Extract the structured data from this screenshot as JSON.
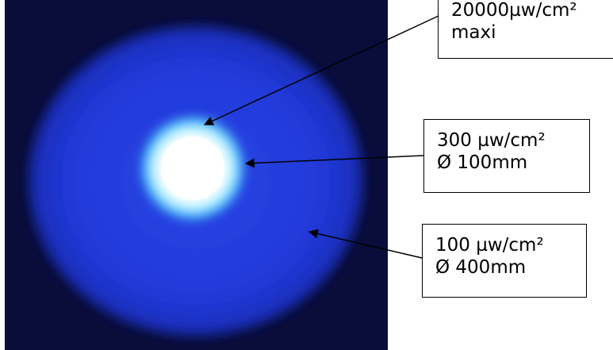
{
  "colors": {
    "background_dark": "#0a0c3a",
    "disc_blue": "#1f37d8",
    "halo_cyan": "#7fe3ff",
    "core_white": "#ffffff",
    "arrow": "#000000"
  },
  "callouts": {
    "max": {
      "line1": "20000µw/cm²",
      "line2": "maxi"
    },
    "inner": {
      "line1": "300 µw/cm²",
      "line2": "Ø 100mm"
    },
    "outer": {
      "line1": "100 µw/cm²",
      "line2": "Ø 400mm"
    }
  }
}
